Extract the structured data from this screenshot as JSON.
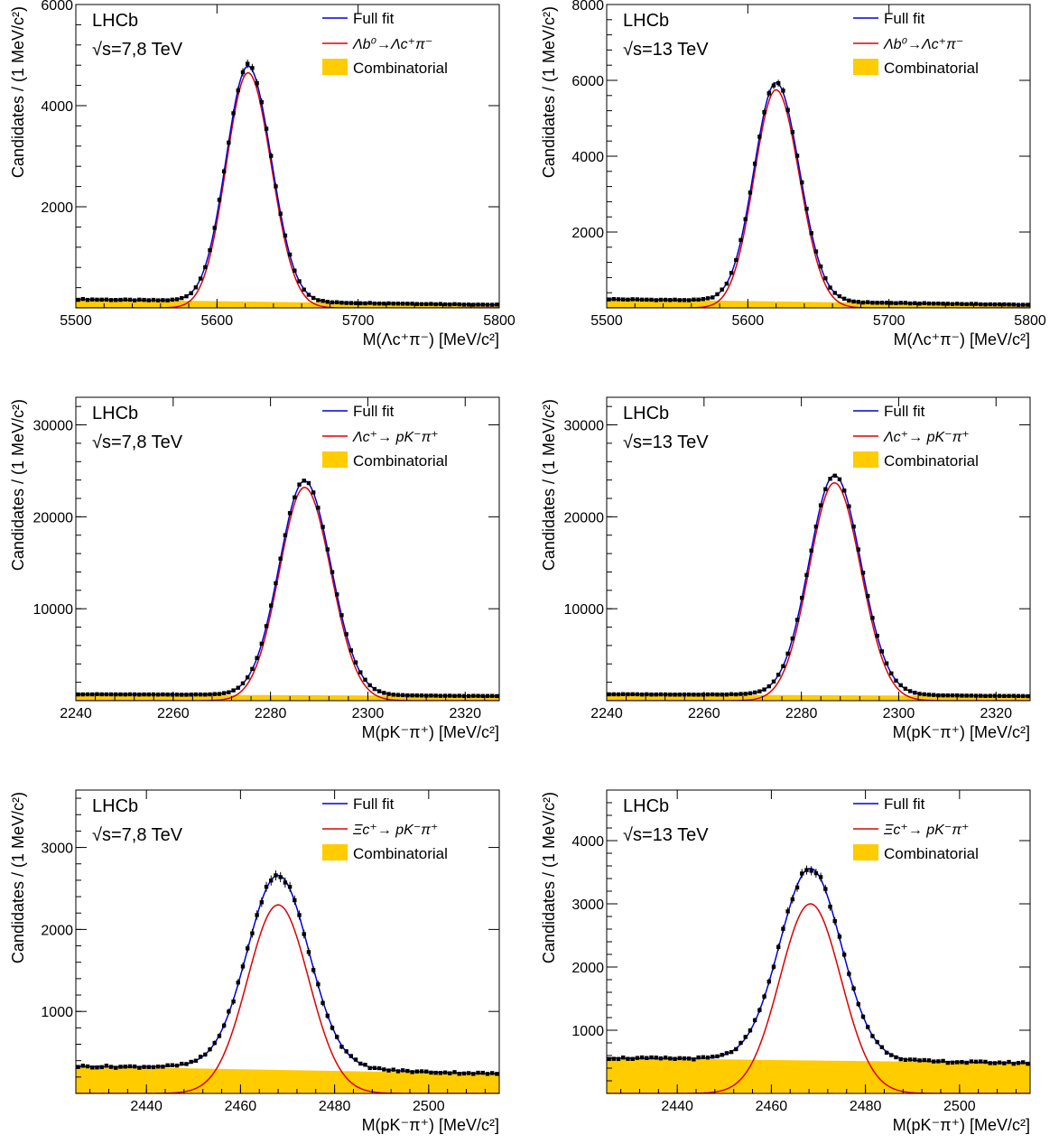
{
  "legend_labels": {
    "full_fit": "Full fit",
    "combinatorial": "Combinatorial"
  },
  "colors": {
    "full_fit": "#0000dd",
    "signal": "#dd0000",
    "combinatorial": "#ffcc00",
    "data_points": "#000000"
  },
  "chart_data": [
    {
      "type": "line",
      "experiment": "LHCb",
      "energy": "√s=7,8 TeV",
      "xlabel": "M(Λc⁺π⁻) [MeV/c²]",
      "ylabel": "Candidates / (1 MeV/c²)",
      "xlim": [
        5500,
        5800
      ],
      "ylim": [
        0,
        6000
      ],
      "xticks": [
        5500,
        5600,
        5700,
        5800
      ],
      "yticks": [
        2000,
        4000,
        6000
      ],
      "signal_label": "Λb⁰→Λc⁺π⁻",
      "signal": {
        "mean": 5622,
        "sigma_left": 15.5,
        "sigma_right": 16.5,
        "peak": 4650
      },
      "background": {
        "start": 170,
        "end": 60
      },
      "full_fit_peak": 4780
    },
    {
      "type": "line",
      "experiment": "LHCb",
      "energy": "√s=13 TeV",
      "xlabel": "M(Λc⁺π⁻) [MeV/c²]",
      "ylabel": "Candidates / (1 MeV/c²)",
      "xlim": [
        5500,
        5800
      ],
      "ylim": [
        0,
        8000
      ],
      "xticks": [
        5500,
        5600,
        5700,
        5800
      ],
      "yticks": [
        2000,
        4000,
        6000,
        8000
      ],
      "signal_label": "Λb⁰→Λc⁺π⁻",
      "signal": {
        "mean": 5620,
        "sigma_left": 15.5,
        "sigma_right": 16.5,
        "peak": 5750
      },
      "background": {
        "start": 230,
        "end": 80
      },
      "full_fit_peak": 5940
    },
    {
      "type": "line",
      "experiment": "LHCb",
      "energy": "√s=7,8 TeV",
      "xlabel": "M(pK⁻π⁺) [MeV/c²]",
      "ylabel": "Candidates / (1 MeV/c²)",
      "xlim": [
        2240,
        2327
      ],
      "ylim": [
        0,
        33000
      ],
      "xticks": [
        2240,
        2260,
        2280,
        2300,
        2320
      ],
      "yticks": [
        10000,
        20000,
        30000
      ],
      "signal_label": "Λc⁺→ pK⁻π⁺",
      "signal": {
        "mean": 2287,
        "sigma_left": 5.2,
        "sigma_right": 5.4,
        "peak": 23200
      },
      "background": {
        "start": 700,
        "end": 500
      },
      "full_fit_peak": 23900
    },
    {
      "type": "line",
      "experiment": "LHCb",
      "energy": "√s=13 TeV",
      "xlabel": "M(pK⁻π⁺) [MeV/c²]",
      "ylabel": "Candidates / (1 MeV/c²)",
      "xlim": [
        2240,
        2327
      ],
      "ylim": [
        0,
        33000
      ],
      "xticks": [
        2240,
        2260,
        2280,
        2300,
        2320
      ],
      "yticks": [
        10000,
        20000,
        30000
      ],
      "signal_label": "Λc⁺→ pK⁻π⁺",
      "signal": {
        "mean": 2286.8,
        "sigma_left": 5.2,
        "sigma_right": 5.4,
        "peak": 23700
      },
      "background": {
        "start": 700,
        "end": 500
      },
      "full_fit_peak": 24500
    },
    {
      "type": "line",
      "experiment": "LHCb",
      "energy": "√s=7,8 TeV",
      "xlabel": "M(pK⁻π⁺) [MeV/c²]",
      "ylabel": "Candidates / (1 MeV/c²)",
      "xlim": [
        2425,
        2515
      ],
      "ylim": [
        0,
        3700
      ],
      "xticks": [
        2440,
        2460,
        2480,
        2500
      ],
      "yticks": [
        1000,
        2000,
        3000
      ],
      "signal_label": "Ξc⁺→ pK⁻π⁺",
      "signal": {
        "mean": 2468,
        "sigma_left": 6.5,
        "sigma_right": 6.5,
        "peak": 2300
      },
      "background": {
        "start": 330,
        "end": 240
      },
      "full_fit_peak": 2660
    },
    {
      "type": "line",
      "experiment": "LHCb",
      "energy": "√s=13 TeV",
      "xlabel": "M(pK⁻π⁺) [MeV/c²]",
      "ylabel": "Candidates / (1 MeV/c²)",
      "xlim": [
        2425,
        2515
      ],
      "ylim": [
        0,
        4800
      ],
      "xticks": [
        2440,
        2460,
        2480,
        2500
      ],
      "yticks": [
        1000,
        2000,
        3000,
        4000
      ],
      "signal_label": "Ξc⁺→ pK⁻π⁺",
      "signal": {
        "mean": 2468.3,
        "sigma_left": 6.5,
        "sigma_right": 6.5,
        "peak": 3000
      },
      "background": {
        "start": 560,
        "end": 480
      },
      "full_fit_peak": 3560
    }
  ]
}
